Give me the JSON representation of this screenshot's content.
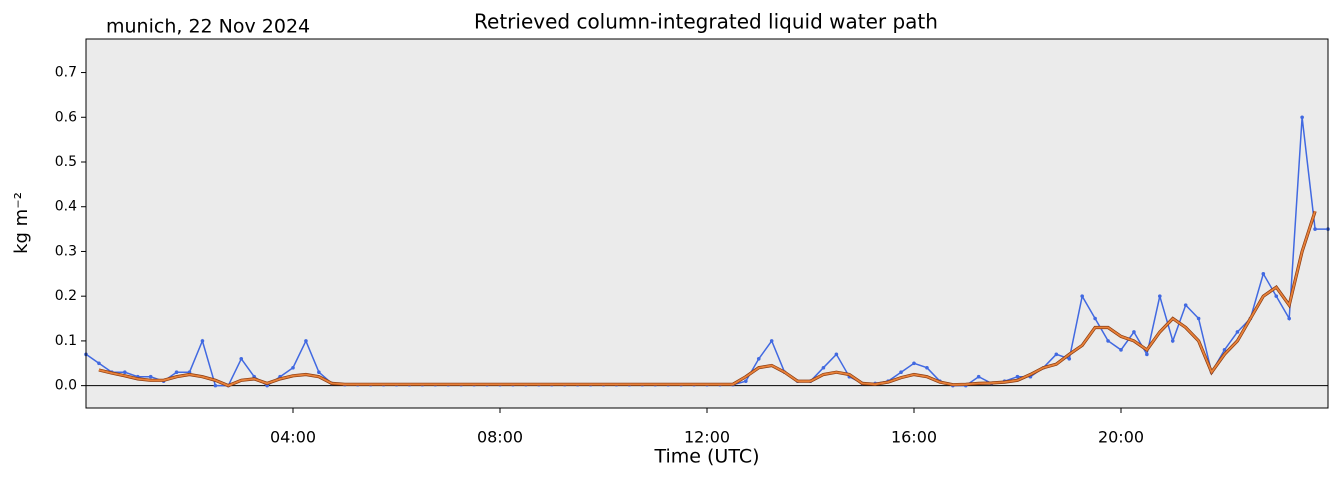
{
  "chart_data": {
    "type": "line",
    "title": "Retrieved column-integrated liquid water path",
    "annotation": "munich, 22 Nov 2024",
    "xlabel": "Time (UTC)",
    "ylabel": "kg m⁻²",
    "x": [
      0,
      0.25,
      0.5,
      0.75,
      1,
      1.25,
      1.5,
      1.75,
      2,
      2.25,
      2.5,
      2.75,
      3,
      3.25,
      3.5,
      3.75,
      4,
      4.25,
      4.5,
      4.75,
      5,
      5.25,
      5.5,
      5.75,
      6,
      6.25,
      6.5,
      6.75,
      7,
      7.25,
      7.5,
      7.75,
      8,
      8.25,
      8.5,
      8.75,
      9,
      9.25,
      9.5,
      9.75,
      10,
      10.25,
      10.5,
      10.75,
      11,
      11.25,
      11.5,
      11.75,
      12,
      12.25,
      12.5,
      12.75,
      13,
      13.25,
      13.5,
      13.75,
      14,
      14.25,
      14.5,
      14.75,
      15,
      15.25,
      15.5,
      15.75,
      16,
      16.25,
      16.5,
      16.75,
      17,
      17.25,
      17.5,
      17.75,
      18,
      18.25,
      18.5,
      18.75,
      19,
      19.25,
      19.5,
      19.75,
      20,
      20.25,
      20.5,
      20.75,
      21,
      21.25,
      21.5,
      21.75,
      22,
      22.25,
      22.5,
      22.75,
      23,
      23.25,
      23.5,
      23.75,
      24
    ],
    "series": [
      {
        "color": "#4169e1",
        "style": "points",
        "values": [
          0.07,
          0.05,
          0.03,
          0.03,
          0.02,
          0.02,
          0.01,
          0.03,
          0.03,
          0.1,
          0.0,
          0.0,
          0.06,
          0.02,
          0.0,
          0.02,
          0.04,
          0.1,
          0.03,
          0.005,
          0.002,
          0.002,
          0.002,
          0.002,
          0.002,
          0.002,
          0.002,
          0.002,
          0.002,
          0.002,
          0.002,
          0.002,
          0.002,
          0.002,
          0.002,
          0.002,
          0.002,
          0.002,
          0.002,
          0.002,
          0.002,
          0.002,
          0.002,
          0.002,
          0.002,
          0.002,
          0.002,
          0.002,
          0.002,
          0.002,
          0.002,
          0.01,
          0.06,
          0.1,
          0.03,
          0.01,
          0.01,
          0.04,
          0.07,
          0.02,
          0.005,
          0.005,
          0.01,
          0.03,
          0.05,
          0.04,
          0.01,
          0.0,
          0.0,
          0.02,
          0.005,
          0.01,
          0.02,
          0.02,
          0.04,
          0.07,
          0.06,
          0.2,
          0.15,
          0.1,
          0.08,
          0.12,
          0.07,
          0.2,
          0.1,
          0.18,
          0.15,
          0.03,
          0.08,
          0.12,
          0.15,
          0.25,
          0.2,
          0.15,
          0.6,
          0.35,
          0.35
        ]
      },
      {
        "color": "#e8813a",
        "style": "line",
        "values": [
          null,
          0.035,
          0.028,
          0.022,
          0.015,
          0.012,
          0.012,
          0.02,
          0.025,
          0.02,
          0.012,
          0.0,
          0.012,
          0.015,
          0.005,
          0.015,
          0.022,
          0.025,
          0.02,
          0.005,
          0.003,
          0.003,
          0.003,
          0.003,
          0.003,
          0.003,
          0.003,
          0.003,
          0.003,
          0.003,
          0.003,
          0.003,
          0.003,
          0.003,
          0.003,
          0.003,
          0.003,
          0.003,
          0.003,
          0.003,
          0.003,
          0.003,
          0.003,
          0.003,
          0.003,
          0.003,
          0.003,
          0.003,
          0.003,
          0.003,
          0.003,
          0.02,
          0.04,
          0.045,
          0.03,
          0.01,
          0.01,
          0.025,
          0.03,
          0.025,
          0.005,
          0.003,
          0.008,
          0.018,
          0.025,
          0.02,
          0.008,
          0.002,
          0.003,
          0.005,
          0.006,
          0.008,
          0.012,
          0.025,
          0.04,
          0.048,
          0.07,
          0.09,
          0.13,
          0.13,
          0.11,
          0.1,
          0.08,
          0.12,
          0.15,
          0.13,
          0.1,
          0.03,
          0.07,
          0.1,
          0.15,
          0.2,
          0.22,
          0.18,
          0.3,
          0.39,
          null
        ]
      }
    ],
    "xlim": [
      0,
      24
    ],
    "xticks": [
      {
        "value": 4,
        "label": "04:00"
      },
      {
        "value": 8,
        "label": "08:00"
      },
      {
        "value": 12,
        "label": "12:00"
      },
      {
        "value": 16,
        "label": "16:00"
      },
      {
        "value": 20,
        "label": "20:00"
      }
    ],
    "ylim": [
      -0.05,
      0.775
    ],
    "yticks": [
      {
        "value": 0,
        "label": "0.0"
      },
      0.1,
      0.2,
      0.3,
      0.4,
      0.5,
      0.6,
      0.7
    ],
    "background": "#ebebeb"
  }
}
